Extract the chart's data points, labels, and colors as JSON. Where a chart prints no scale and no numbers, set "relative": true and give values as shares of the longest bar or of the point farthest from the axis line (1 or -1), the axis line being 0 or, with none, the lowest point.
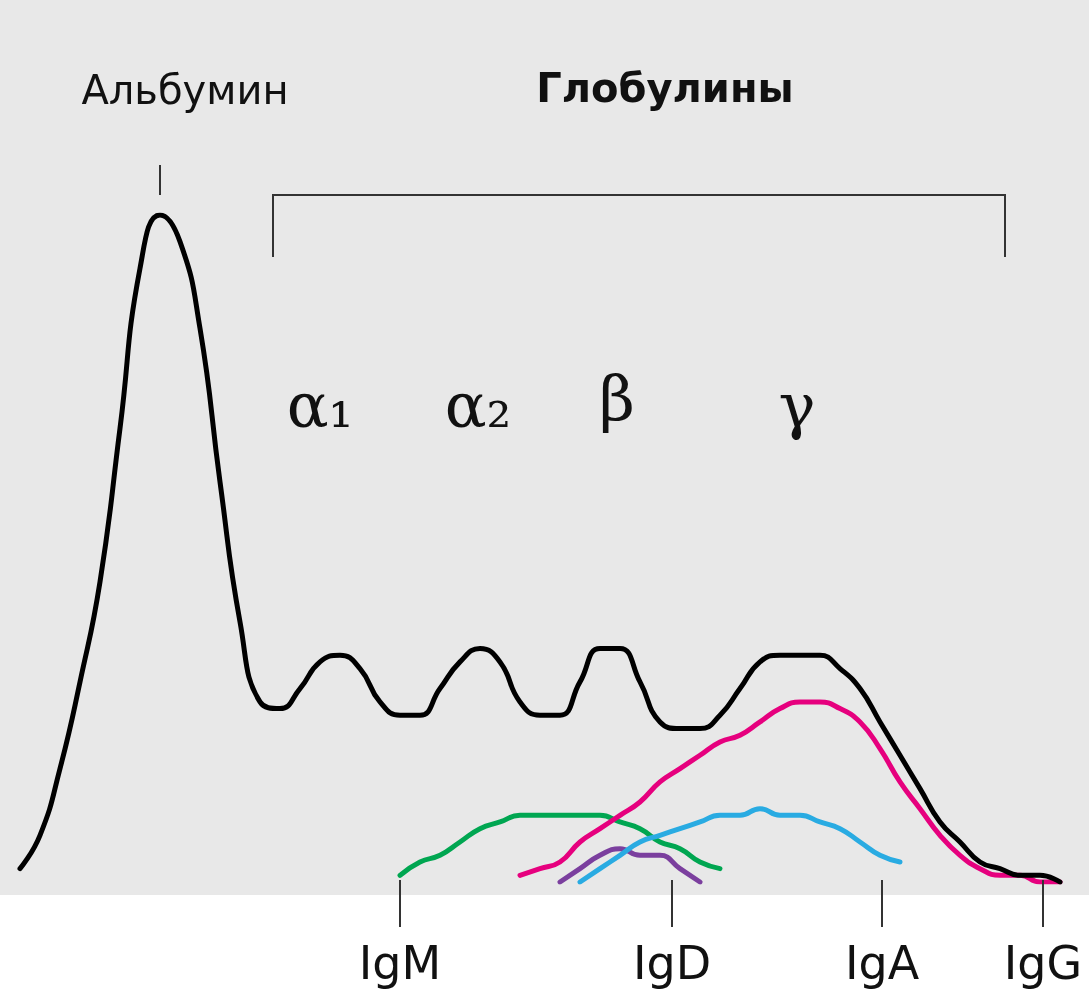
{
  "chart_data": {
    "type": "line",
    "relative": true,
    "marker": "none",
    "line_style": "solid",
    "annotations": [
      "Альбумин",
      "Глобулины",
      "α₁",
      "α₂",
      "β",
      "γ"
    ],
    "categories": [
      null,
      null,
      null,
      null,
      null,
      null,
      null,
      null,
      null,
      null,
      null,
      null,
      null,
      null,
      null,
      null,
      null,
      null,
      null,
      null,
      null,
      null,
      null,
      null,
      null,
      null,
      null,
      null,
      null,
      null,
      null,
      null,
      null,
      null,
      null,
      null,
      null,
      null,
      null,
      null,
      null,
      null,
      null,
      null,
      null,
      null,
      null,
      null,
      null,
      null,
      null,
      null,
      null
    ],
    "series": [
      {
        "name": "IgM",
        "color": "#00a651",
        "values": [
          null,
          null,
          null,
          null,
          null,
          null,
          null,
          null,
          null,
          null,
          null,
          null,
          null,
          null,
          null,
          null,
          null,
          null,
          null,
          0.01,
          0.03,
          0.04,
          0.06,
          0.08,
          0.09,
          0.1,
          0.1,
          0.1,
          0.1,
          0.1,
          0.09,
          0.08,
          0.06,
          0.05,
          0.03,
          0.02,
          null,
          null,
          null,
          null,
          null,
          null,
          null,
          null,
          null,
          null,
          null,
          null,
          null,
          null,
          null,
          null,
          null
        ]
      },
      {
        "name": "IgD",
        "color": "#7b3f9e",
        "values": [
          null,
          null,
          null,
          null,
          null,
          null,
          null,
          null,
          null,
          null,
          null,
          null,
          null,
          null,
          null,
          null,
          null,
          null,
          null,
          null,
          null,
          null,
          null,
          null,
          null,
          null,
          null,
          0,
          0.02,
          0.04,
          0.05,
          0.04,
          0.04,
          0.02,
          0,
          null,
          null,
          null,
          null,
          null,
          null,
          null,
          null,
          null,
          null,
          null,
          null,
          null,
          null,
          null,
          null,
          null,
          null
        ]
      },
      {
        "name": "IgA",
        "color": "#29abe2",
        "values": [
          null,
          null,
          null,
          null,
          null,
          null,
          null,
          null,
          null,
          null,
          null,
          null,
          null,
          null,
          null,
          null,
          null,
          null,
          null,
          null,
          null,
          null,
          null,
          null,
          null,
          null,
          null,
          null,
          0,
          0.02,
          0.04,
          0.06,
          0.07,
          0.08,
          0.09,
          0.1,
          0.1,
          0.11,
          0.1,
          0.1,
          0.09,
          0.08,
          0.06,
          0.04,
          0.03,
          null,
          null,
          null,
          null,
          null,
          null,
          null,
          null
        ]
      },
      {
        "name": "IgG",
        "color": "#e6007e",
        "values": [
          null,
          null,
          null,
          null,
          null,
          null,
          null,
          null,
          null,
          null,
          null,
          null,
          null,
          null,
          null,
          null,
          null,
          null,
          null,
          null,
          null,
          null,
          null,
          null,
          null,
          0.01,
          0.02,
          0.03,
          0.06,
          0.08,
          0.1,
          0.12,
          0.15,
          0.17,
          0.19,
          0.21,
          0.22,
          0.24,
          0.26,
          0.27,
          0.27,
          0.26,
          0.24,
          0.2,
          0.15,
          0.11,
          0.07,
          0.04,
          0.02,
          0.01,
          0.01,
          0,
          0
        ]
      },
      {
        "color": "#000000",
        "values": [
          0.02,
          0.07,
          0.17,
          0.3,
          0.45,
          0.68,
          0.92,
          1,
          0.96,
          0.83,
          0.6,
          0.39,
          0.27,
          0.26,
          0.29,
          0.33,
          0.34,
          0.32,
          0.27,
          0.25,
          0.25,
          0.29,
          0.33,
          0.35,
          0.33,
          0.27,
          0.25,
          0.25,
          0.3,
          0.35,
          0.35,
          0.3,
          0.24,
          0.23,
          0.23,
          0.25,
          0.29,
          0.33,
          0.34,
          0.34,
          0.34,
          0.32,
          0.29,
          0.24,
          0.19,
          0.14,
          0.09,
          0.06,
          0.03,
          0.02,
          0.01,
          0.01,
          0
        ]
      }
    ]
  }
}
